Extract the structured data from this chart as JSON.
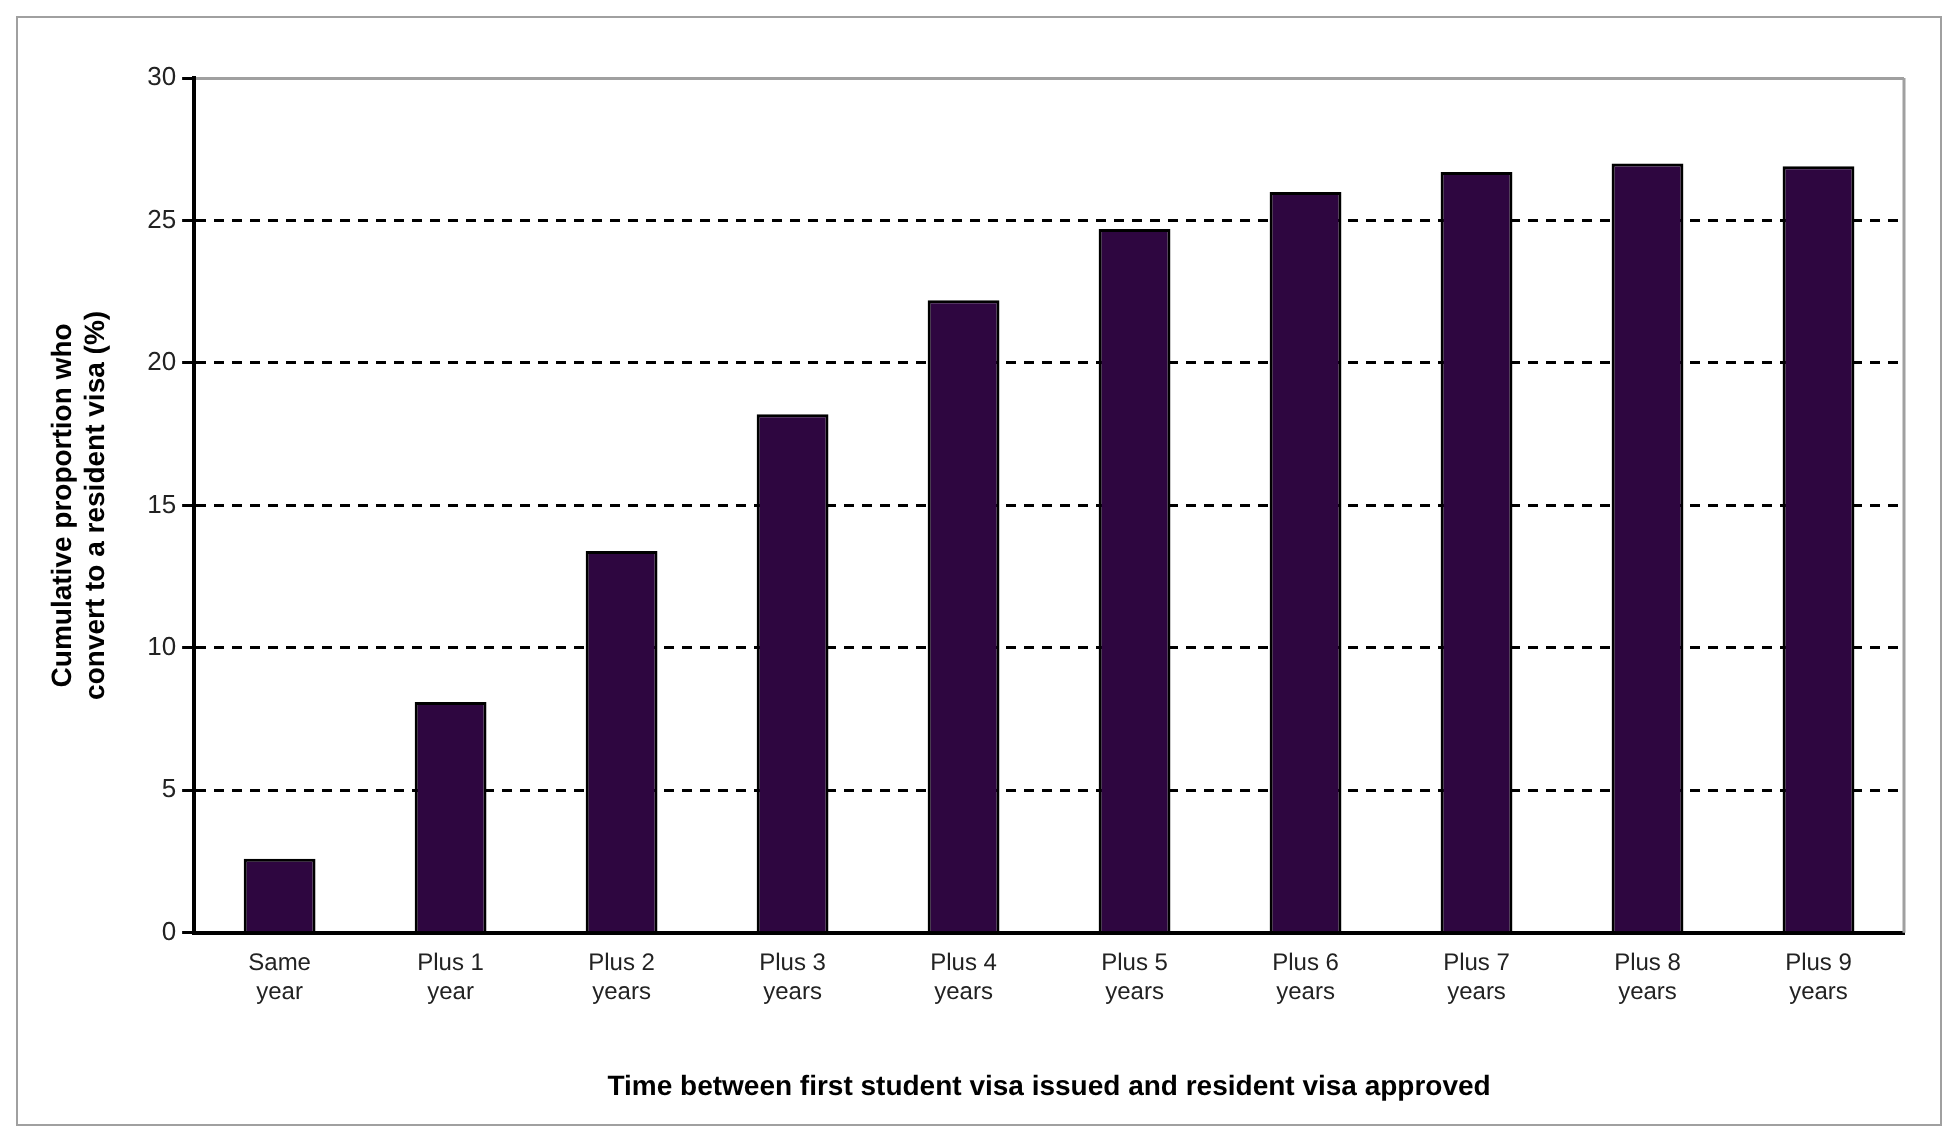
{
  "chart_data": {
    "type": "bar",
    "xlabel": "Time between first student visa issued and resident visa approved",
    "ylabel": "Cumulative proportion who\nconvert to a resident visa (%)",
    "categories": [
      "Same\nyear",
      "Plus 1\nyear",
      "Plus 2\nyears",
      "Plus 3\nyears",
      "Plus 4\nyears",
      "Plus 5\nyears",
      "Plus 6\nyears",
      "Plus 7\nyears",
      "Plus 8\nyears",
      "Plus 9\nyears"
    ],
    "values": [
      2.6,
      8.1,
      13.4,
      18.2,
      22.2,
      24.7,
      26.0,
      26.7,
      27.0,
      26.9
    ],
    "color": "#2e0640",
    "ylim": [
      0,
      30
    ],
    "yticks": [
      0,
      5,
      10,
      15,
      20,
      25,
      30
    ],
    "grid": "y",
    "legend": false,
    "line_style": "dashed"
  }
}
